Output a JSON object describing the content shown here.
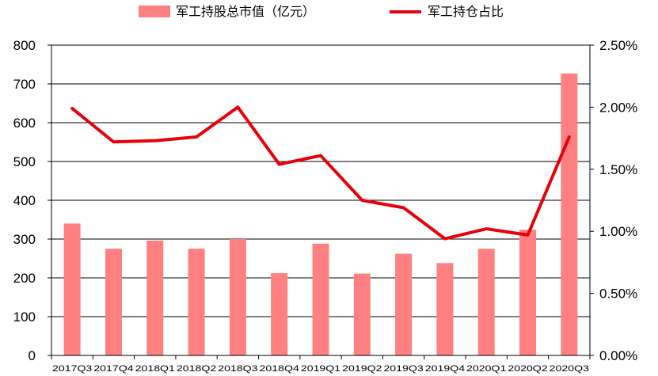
{
  "chart_data": {
    "type": "bar",
    "categories": [
      "2017Q3",
      "2017Q4",
      "2018Q1",
      "2018Q2",
      "2018Q3",
      "2018Q4",
      "2019Q1",
      "2019Q2",
      "2019Q3",
      "2019Q4",
      "2020Q1",
      "2020Q2",
      "2020Q3"
    ],
    "series": [
      {
        "name": "军工持股总市值（亿元）",
        "type": "bar",
        "axis": "left",
        "color": "#ff8080",
        "values": [
          340,
          275,
          296,
          275,
          300,
          212,
          288,
          211,
          262,
          238,
          275,
          324,
          727
        ]
      },
      {
        "name": "军工持仓占比",
        "type": "line",
        "axis": "right",
        "color": "#e8000b",
        "values": [
          1.99,
          1.72,
          1.73,
          1.76,
          2.0,
          1.54,
          1.61,
          1.25,
          1.19,
          0.94,
          1.02,
          0.97,
          1.76
        ]
      }
    ],
    "ylim_left": [
      0,
      800
    ],
    "yticks_left": [
      "0",
      "100",
      "200",
      "300",
      "400",
      "500",
      "600",
      "700",
      "800"
    ],
    "ylim_right": [
      0,
      2.5
    ],
    "yticks_right": [
      "0.00%",
      "0.50%",
      "1.00%",
      "1.50%",
      "2.00%",
      "2.50%"
    ],
    "grid": true,
    "legend_position": "top"
  }
}
